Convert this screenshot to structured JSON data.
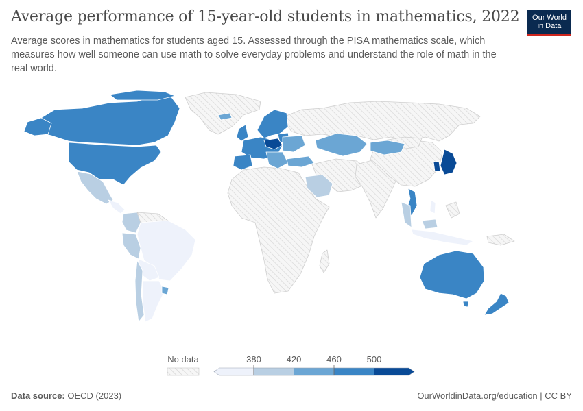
{
  "title": "Average performance of 15-year-old students in mathematics, 2022",
  "subtitle": "Average scores in mathematics for students aged 15. Assessed through the PISA mathematics scale, which measures how well someone can use math to solve everyday problems and understand the role of math in the real world.",
  "logo": {
    "line1": "Our World",
    "line2": "in Data"
  },
  "legend": {
    "no_data_label": "No data",
    "ticks": [
      "380",
      "420",
      "460",
      "500"
    ],
    "bins": [
      {
        "color": "#eef2fb"
      },
      {
        "color": "#b9cfe3"
      },
      {
        "color": "#6ba6d4"
      },
      {
        "color": "#3a85c5"
      },
      {
        "color": "#094a96"
      }
    ]
  },
  "footer": {
    "source_label": "Data source:",
    "source_value": "OECD (2023)",
    "credit": "OurWorldinData.org/education | CC BY"
  },
  "colors": {
    "no_data_fill": "#f2f2f2",
    "hatch": "#d8d8d8",
    "border": "#ffffff"
  }
}
